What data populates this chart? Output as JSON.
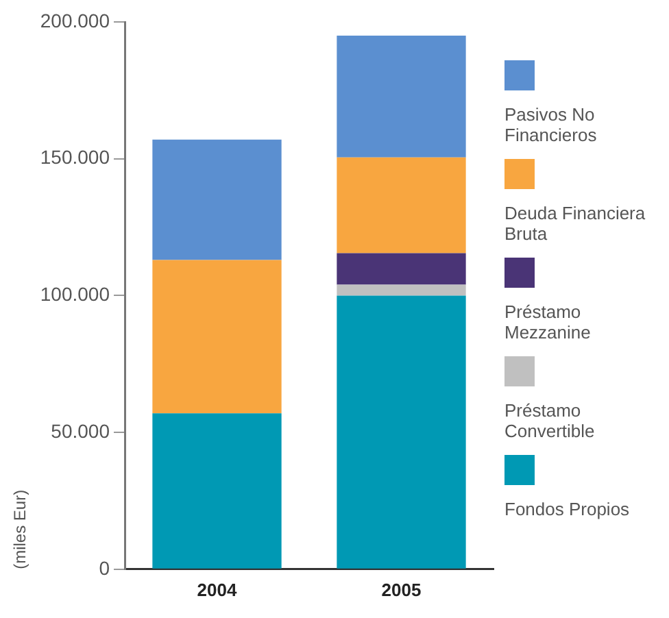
{
  "chart_data": {
    "type": "bar",
    "stacked": true,
    "ylabel": "(miles Eur)",
    "categories": [
      "2004",
      "2005"
    ],
    "series": [
      {
        "name": "Fondos Propios",
        "color": "#0099b4",
        "values": [
          57000,
          100000
        ]
      },
      {
        "name": "Préstamo Convertible",
        "color": "#c0c0c0",
        "values": [
          null,
          4000
        ]
      },
      {
        "name": "Préstamo Mezzanine",
        "color": "#4a3476",
        "values": [
          null,
          11500
        ]
      },
      {
        "name": "Deuda Financiera Bruta",
        "color": "#f8a640",
        "values": [
          56000,
          35000
        ]
      },
      {
        "name": "Pasivos No Financieros",
        "color": "#5b8fd0",
        "values": [
          44000,
          44500
        ]
      }
    ],
    "ylim": [
      0,
      200000
    ],
    "yticks": [
      {
        "value": 0,
        "label": "0"
      },
      {
        "value": 50000,
        "label": "50.000"
      },
      {
        "value": 100000,
        "label": "100.000"
      },
      {
        "value": 150000,
        "label": "150.000"
      },
      {
        "value": 200000,
        "label": "200.000"
      }
    ],
    "grid": false,
    "legend": "right"
  }
}
